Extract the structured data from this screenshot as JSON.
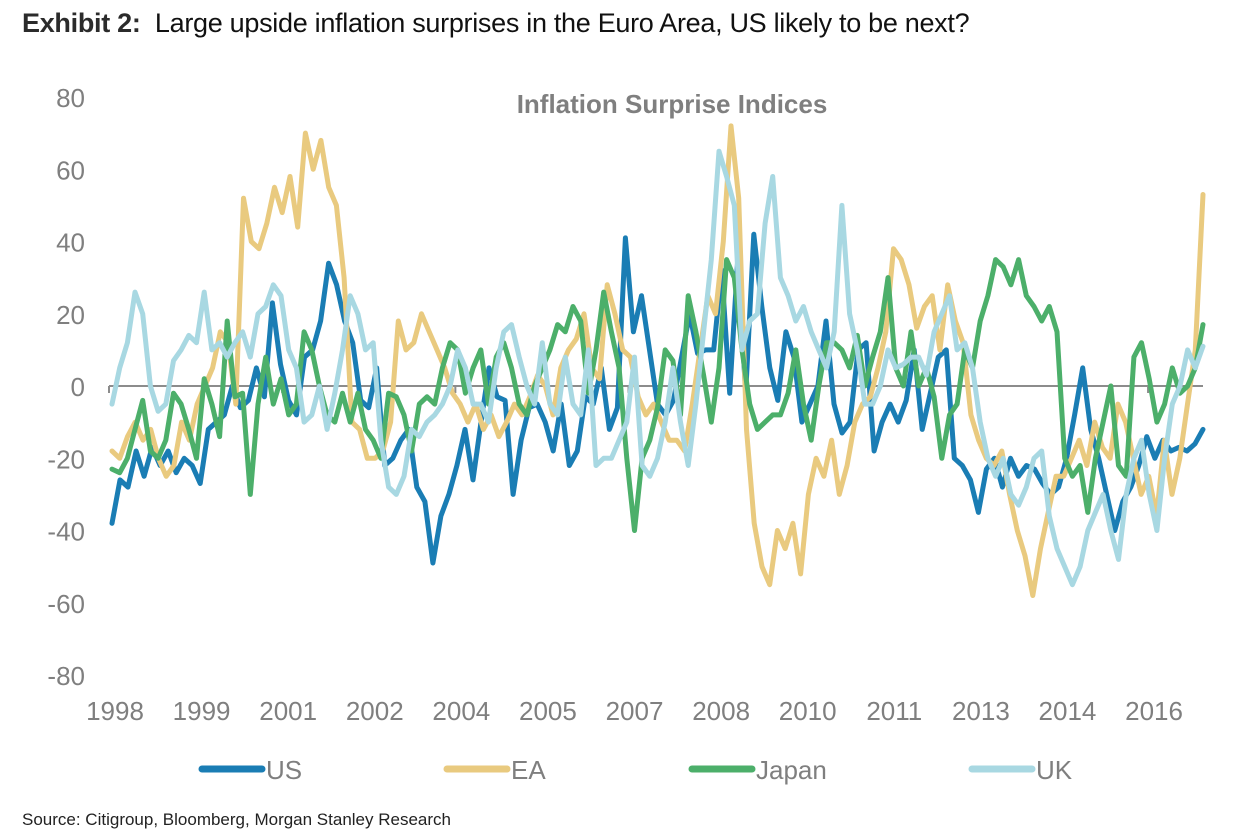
{
  "header": {
    "exhibit_label": "Exhibit 2:",
    "exhibit_title": "Large upside inflation surprises in the Euro Area, US likely to be next?"
  },
  "source": "Source: Citigroup, Bloomberg, Morgan Stanley Research",
  "chart_data": {
    "type": "line",
    "title": "Inflation Surprise Indices",
    "xlabel": "",
    "ylabel": "",
    "ylim": [
      -80,
      80
    ],
    "yticks": [
      80,
      60,
      40,
      20,
      0,
      -20,
      -40,
      -60,
      -80
    ],
    "xlim": [
      1998.0,
      2016.9
    ],
    "xtick_labels": [
      "1998",
      "1999",
      "2001",
      "2002",
      "2004",
      "2005",
      "2007",
      "2008",
      "2010",
      "2011",
      "2013",
      "2014",
      "2016"
    ],
    "xtick_positions": [
      1998.0,
      1999.5,
      2001.0,
      2002.5,
      2004.0,
      2005.5,
      2007.0,
      2008.5,
      2010.0,
      2011.5,
      2013.0,
      2014.5,
      2016.0
    ],
    "grid": false,
    "zero_line": true,
    "legend_position": "bottom",
    "x_start": 1998.0,
    "x_step_years": 0.1667,
    "series": [
      {
        "name": "US",
        "color": "#1a7db4",
        "values": [
          -38,
          -26,
          -28,
          -18,
          -25,
          -17,
          -22,
          -18,
          -24,
          -20,
          -22,
          -27,
          -12,
          -10,
          -8,
          0,
          -6,
          -4,
          5,
          -3,
          23,
          6,
          -4,
          -8,
          8,
          10,
          18,
          34,
          28,
          18,
          12,
          -4,
          -6,
          5,
          -22,
          -20,
          -15,
          -12,
          -28,
          -32,
          -49,
          -36,
          -30,
          -22,
          -12,
          -26,
          -10,
          5,
          -3,
          -4,
          -30,
          -15,
          -6,
          -5,
          -10,
          -18,
          -5,
          -22,
          -18,
          -3,
          -5,
          5,
          -12,
          -6,
          41,
          15,
          25,
          10,
          -5,
          -8,
          -4,
          8,
          20,
          9,
          10,
          10,
          32,
          -2,
          35,
          -2,
          42,
          22,
          5,
          -4,
          15,
          8,
          -10,
          -5,
          0,
          18,
          -5,
          -13,
          -10,
          10,
          12,
          -18,
          -10,
          -5,
          -10,
          -4,
          10,
          -12,
          -2,
          8,
          10,
          -20,
          -22,
          -26,
          -35,
          -23,
          -20,
          -28,
          -20,
          -25,
          -22,
          -23,
          -27,
          -30,
          -28,
          -20,
          -8,
          5,
          -12,
          -20,
          -30,
          -40,
          -32,
          -28,
          -22,
          -14,
          -20,
          -15,
          -18,
          -17,
          -18,
          -16,
          -12
        ]
      },
      {
        "name": "EA",
        "color": "#e9ca7f",
        "values": [
          -18,
          -20,
          -14,
          -10,
          -15,
          -12,
          -20,
          -25,
          -22,
          -10,
          -15,
          -5,
          0,
          5,
          15,
          12,
          -5,
          52,
          40,
          38,
          45,
          55,
          48,
          58,
          44,
          70,
          60,
          68,
          55,
          50,
          30,
          -10,
          -12,
          -20,
          -20,
          -18,
          -10,
          18,
          10,
          12,
          20,
          15,
          10,
          5,
          -2,
          -5,
          -10,
          -5,
          -12,
          -8,
          -14,
          -10,
          -5,
          -8,
          -3,
          3,
          0,
          -8,
          5,
          10,
          13,
          20,
          5,
          2,
          28,
          20,
          10,
          8,
          -3,
          -8,
          -5,
          -10,
          -15,
          -15,
          -18,
          -5,
          10,
          25,
          20,
          40,
          72,
          52,
          -12,
          -38,
          -50,
          -55,
          -40,
          -45,
          -38,
          -52,
          -30,
          -20,
          -25,
          -15,
          -30,
          -22,
          -10,
          -5,
          -3,
          5,
          15,
          38,
          35,
          28,
          16,
          22,
          25,
          10,
          28,
          18,
          12,
          -8,
          -15,
          -20,
          -22,
          -18,
          -30,
          -40,
          -47,
          -58,
          -45,
          -35,
          -25,
          -25,
          -20,
          -15,
          -22,
          -10,
          -17,
          -20,
          -5,
          -10,
          -20,
          -30,
          -25,
          -36,
          -15,
          -30,
          -20,
          -5,
          10,
          53
        ]
      },
      {
        "name": "Japan",
        "color": "#4caf6a",
        "values": [
          -23,
          -24,
          -20,
          -12,
          -4,
          -18,
          -20,
          -15,
          -2,
          -5,
          -12,
          -20,
          2,
          -5,
          -14,
          18,
          -3,
          -2,
          -30,
          -5,
          8,
          -5,
          2,
          -8,
          -5,
          15,
          10,
          0,
          -8,
          -10,
          -2,
          -10,
          -2,
          -12,
          -15,
          -20,
          -2,
          -3,
          -8,
          -18,
          -5,
          -3,
          -5,
          5,
          12,
          10,
          -2,
          5,
          10,
          -5,
          8,
          12,
          5,
          -5,
          -8,
          0,
          5,
          10,
          17,
          15,
          22,
          18,
          -2,
          10,
          26,
          15,
          5,
          -20,
          -40,
          -20,
          -15,
          -6,
          10,
          7,
          -8,
          25,
          15,
          3,
          -10,
          5,
          35,
          30,
          10,
          -5,
          -12,
          -10,
          -8,
          -8,
          -2,
          10,
          -5,
          -15,
          0,
          12,
          12,
          10,
          5,
          14,
          0,
          8,
          15,
          30,
          5,
          0,
          15,
          0,
          5,
          -3,
          -20,
          -8,
          -5,
          10,
          5,
          18,
          25,
          35,
          33,
          28,
          35,
          25,
          22,
          18,
          22,
          15,
          -20,
          -25,
          -22,
          -35,
          -20,
          -10,
          0,
          -22,
          -25,
          8,
          12,
          2,
          -10,
          -5,
          5,
          -2,
          0,
          5,
          17
        ]
      },
      {
        "name": "UK",
        "color": "#a8d8e2",
        "values": [
          -5,
          5,
          12,
          26,
          20,
          0,
          -7,
          -5,
          7,
          10,
          14,
          12,
          26,
          10,
          12,
          8,
          12,
          15,
          8,
          20,
          22,
          28,
          25,
          10,
          5,
          -10,
          -8,
          0,
          -12,
          -2,
          10,
          25,
          20,
          10,
          12,
          -15,
          -28,
          -30,
          -25,
          -12,
          -14,
          -10,
          -8,
          -5,
          0,
          10,
          5,
          -5,
          -5,
          -10,
          5,
          15,
          17,
          8,
          0,
          -5,
          12,
          -5,
          -8,
          8,
          -5,
          -8,
          10,
          -22,
          -20,
          -20,
          -15,
          -10,
          8,
          -22,
          -25,
          -20,
          -10,
          5,
          -10,
          -22,
          -5,
          15,
          35,
          65,
          58,
          50,
          10,
          18,
          20,
          45,
          58,
          30,
          25,
          18,
          22,
          15,
          10,
          5,
          15,
          50,
          20,
          10,
          -5,
          -5,
          0,
          10,
          5,
          6,
          8,
          8,
          3,
          15,
          20,
          25,
          10,
          12,
          5,
          -10,
          -20,
          -25,
          -20,
          -30,
          -33,
          -28,
          -20,
          -18,
          -36,
          -45,
          -50,
          -55,
          -50,
          -40,
          -35,
          -30,
          -40,
          -48,
          -30,
          -20,
          -15,
          -30,
          -40,
          -20,
          -5,
          0,
          10,
          5,
          11
        ]
      }
    ]
  }
}
